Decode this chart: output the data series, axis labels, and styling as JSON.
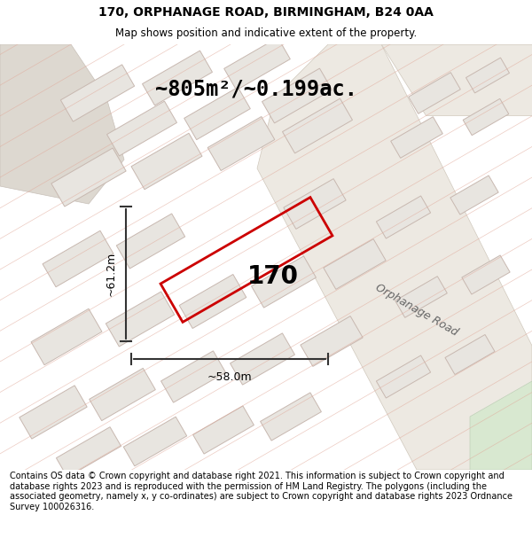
{
  "title_line1": "170, ORPHANAGE ROAD, BIRMINGHAM, B24 0AA",
  "title_line2": "Map shows position and indicative extent of the property.",
  "area_text": "~805m²/~0.199ac.",
  "property_number": "170",
  "dim_width": "~58.0m",
  "dim_height": "~61.2m",
  "road_label": "Orphanage Road",
  "copyright_text": "Contains OS data © Crown copyright and database right 2021. This information is subject to Crown copyright and database rights 2023 and is reproduced with the permission of HM Land Registry. The polygons (including the associated geometry, namely x, y co-ordinates) are subject to Crown copyright and database rights 2023 Ordnance Survey 100026316.",
  "map_bg": "#f5f3ef",
  "building_fill": "#e8e5e0",
  "building_edge": "#c8b8b0",
  "property_color": "#cc0000",
  "hatch_color": "#e0a898",
  "road_fill": "#ede9e2",
  "fig_width": 6.0,
  "fig_height": 6.25,
  "title_fontsize": 10,
  "subtitle_fontsize": 8.5,
  "area_fontsize": 17,
  "num_fontsize": 20,
  "road_fontsize": 9,
  "dim_fontsize": 9,
  "copy_fontsize": 7
}
